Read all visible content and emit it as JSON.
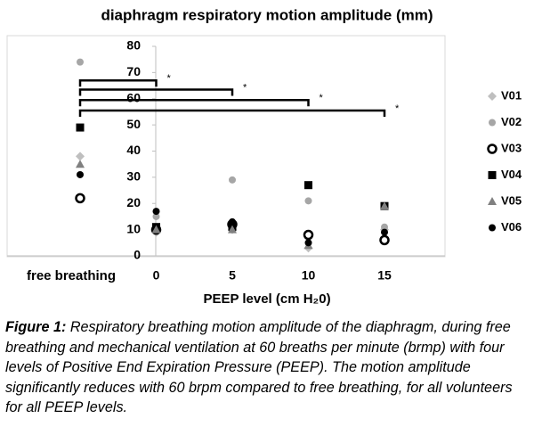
{
  "chart_data": {
    "type": "scatter",
    "title": "diaphragm respiratory motion amplitude (mm)",
    "xlabel": "PEEP level (cm H₂0)",
    "categories": [
      "free breathing",
      "0",
      "5",
      "10",
      "15"
    ],
    "ylim": [
      0,
      80
    ],
    "yticks": [
      0,
      10,
      20,
      30,
      40,
      50,
      60,
      70,
      80
    ],
    "legend": "right",
    "series": [
      {
        "name": "V01",
        "color": "#bfbfbf",
        "marker": "diamond",
        "values": [
          38,
          9,
          10,
          3,
          10
        ]
      },
      {
        "name": "V02",
        "color": "#a6a6a6",
        "marker": "circle",
        "values": [
          74,
          15,
          29,
          21,
          11
        ]
      },
      {
        "name": "V03",
        "color": "#000000",
        "marker": "open-circle",
        "values": [
          22,
          10,
          12,
          8,
          6
        ]
      },
      {
        "name": "V04",
        "color": "#000000",
        "marker": "square",
        "values": [
          49,
          11,
          11,
          27,
          19
        ]
      },
      {
        "name": "V05",
        "color": "#808080",
        "marker": "triangle",
        "values": [
          35,
          10,
          10,
          4,
          19
        ]
      },
      {
        "name": "V06",
        "color": "#000000",
        "marker": "circle",
        "values": [
          31,
          17,
          13,
          5,
          9
        ]
      }
    ],
    "annotations": [
      {
        "text": "*",
        "x": "0",
        "y": 67
      },
      {
        "text": "*",
        "x": "5",
        "y": 63.5
      },
      {
        "text": "*",
        "x": "10",
        "y": 59.5
      },
      {
        "text": "*",
        "x": "15",
        "y": 55.5
      }
    ]
  },
  "caption": {
    "label": "Figure 1:",
    "text": "Respiratory breathing motion amplitude of the diaphragm, during free breathing and mechanical ventilation at 60 breaths per minute (brmp) with four levels of Positive End Expiration Pressure (PEEP). The motion amplitude significantly reduces with 60 brpm compared to free breathing, for all volunteers for all PEEP levels."
  }
}
